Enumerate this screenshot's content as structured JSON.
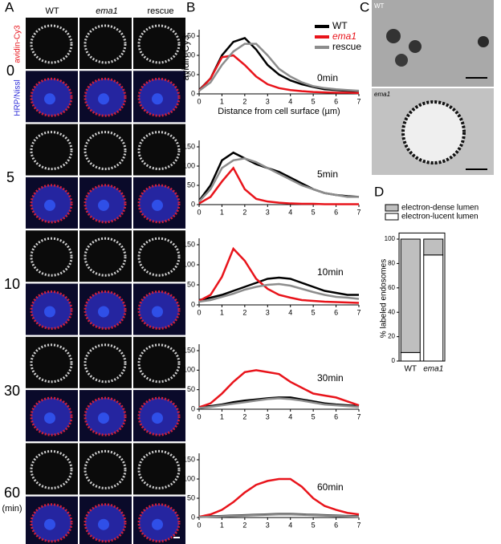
{
  "panel_labels": [
    "A",
    "B",
    "C",
    "D"
  ],
  "panel_a": {
    "columns": [
      "WT",
      "ema1",
      "rescue"
    ],
    "stains": [
      "avidin-Cy3",
      "HRP/Nissl"
    ],
    "times": [
      "0",
      "5",
      "10",
      "30",
      "60"
    ],
    "time_unit": "(min)"
  },
  "panel_c": {
    "labels": [
      "WT",
      "ema1"
    ]
  },
  "chart_data": [
    {
      "type": "line",
      "annotation": "0min",
      "xlabel": "Distance from cell surface (µm)",
      "ylabel": "avidin-Cy3",
      "legend": "upper right",
      "x": [
        0,
        0.5,
        1,
        1.5,
        2,
        2.5,
        3,
        3.5,
        4,
        4.5,
        5,
        5.5,
        6,
        6.5,
        7
      ],
      "xlim": [
        0,
        7
      ],
      "xticks": [
        0,
        1,
        2,
        3,
        4,
        5,
        6,
        7
      ],
      "ylim": [
        0,
        150
      ],
      "yticks": [
        0,
        50,
        100,
        150
      ],
      "series": [
        {
          "name": "WT",
          "color": "#000000",
          "values": [
            10,
            40,
            100,
            135,
            145,
            115,
            75,
            50,
            35,
            25,
            18,
            12,
            10,
            8,
            7
          ]
        },
        {
          "name": "ema1",
          "color": "#e8141b",
          "values": [
            8,
            40,
            95,
            100,
            75,
            45,
            25,
            15,
            10,
            7,
            5,
            4,
            3,
            3,
            2
          ]
        },
        {
          "name": "rescue",
          "color": "#8c8c8c",
          "values": [
            8,
            30,
            75,
            110,
            130,
            130,
            100,
            65,
            45,
            30,
            20,
            15,
            12,
            10,
            8
          ]
        }
      ]
    },
    {
      "type": "line",
      "annotation": "5min",
      "x": [
        0,
        0.5,
        1,
        1.5,
        2,
        2.5,
        3,
        3.5,
        4,
        4.5,
        5,
        5.5,
        6,
        6.5,
        7
      ],
      "xlim": [
        0,
        7
      ],
      "xticks": [
        0,
        1,
        2,
        3,
        4,
        5,
        6,
        7
      ],
      "ylim": [
        0,
        150
      ],
      "yticks": [
        0,
        50,
        100,
        150
      ],
      "series": [
        {
          "color": "#000000",
          "values": [
            10,
            50,
            115,
            135,
            120,
            105,
            95,
            85,
            70,
            55,
            40,
            30,
            25,
            22,
            20
          ]
        },
        {
          "color": "#e8141b",
          "values": [
            3,
            20,
            60,
            95,
            40,
            15,
            8,
            5,
            3,
            2,
            2,
            1,
            1,
            1,
            1
          ]
        },
        {
          "color": "#8c8c8c",
          "values": [
            8,
            40,
            95,
            115,
            120,
            110,
            95,
            80,
            65,
            50,
            40,
            30,
            25,
            20,
            20
          ]
        }
      ]
    },
    {
      "type": "line",
      "annotation": "10min",
      "x": [
        0,
        0.5,
        1,
        1.5,
        2,
        2.5,
        3,
        3.5,
        4,
        4.5,
        5,
        5.5,
        6,
        6.5,
        7
      ],
      "xlim": [
        0,
        7
      ],
      "xticks": [
        0,
        1,
        2,
        3,
        4,
        5,
        6,
        7
      ],
      "ylim": [
        0,
        150
      ],
      "yticks": [
        0,
        50,
        100,
        150
      ],
      "series": [
        {
          "color": "#000000",
          "values": [
            12,
            18,
            25,
            35,
            45,
            55,
            65,
            68,
            65,
            55,
            45,
            35,
            30,
            25,
            25
          ]
        },
        {
          "color": "#e8141b",
          "values": [
            10,
            25,
            70,
            140,
            110,
            65,
            40,
            25,
            18,
            12,
            10,
            8,
            7,
            6,
            5
          ]
        },
        {
          "color": "#8c8c8c",
          "values": [
            8,
            12,
            20,
            28,
            38,
            45,
            50,
            52,
            48,
            40,
            32,
            25,
            20,
            18,
            15
          ]
        }
      ]
    },
    {
      "type": "line",
      "annotation": "30min",
      "x": [
        0,
        0.5,
        1,
        1.5,
        2,
        2.5,
        3,
        3.5,
        4,
        4.5,
        5,
        5.5,
        6,
        6.5,
        7
      ],
      "xlim": [
        0,
        7
      ],
      "xticks": [
        0,
        1,
        2,
        3,
        4,
        5,
        6,
        7
      ],
      "ylim": [
        0,
        150
      ],
      "yticks": [
        0,
        50,
        100,
        150
      ],
      "series": [
        {
          "color": "#000000",
          "values": [
            5,
            8,
            12,
            18,
            22,
            25,
            28,
            30,
            30,
            25,
            20,
            15,
            12,
            10,
            8
          ]
        },
        {
          "color": "#e8141b",
          "values": [
            5,
            15,
            40,
            70,
            95,
            100,
            95,
            90,
            70,
            55,
            40,
            35,
            30,
            20,
            10
          ]
        },
        {
          "color": "#8c8c8c",
          "values": [
            3,
            6,
            10,
            14,
            18,
            22,
            26,
            28,
            26,
            22,
            17,
            12,
            10,
            8,
            6
          ]
        }
      ]
    },
    {
      "type": "line",
      "annotation": "60min",
      "x": [
        0,
        0.5,
        1,
        1.5,
        2,
        2.5,
        3,
        3.5,
        4,
        4.5,
        5,
        5.5,
        6,
        6.5,
        7
      ],
      "xlim": [
        0,
        7
      ],
      "xticks": [
        0,
        1,
        2,
        3,
        4,
        5,
        6,
        7
      ],
      "ylim": [
        0,
        150
      ],
      "yticks": [
        0,
        50,
        100,
        150
      ],
      "series": [
        {
          "color": "#000000",
          "values": [
            2,
            3,
            4,
            5,
            6,
            7,
            8,
            9,
            9,
            8,
            7,
            6,
            5,
            4,
            3
          ]
        },
        {
          "color": "#e8141b",
          "values": [
            2,
            8,
            20,
            40,
            65,
            85,
            95,
            100,
            100,
            80,
            50,
            30,
            20,
            12,
            8
          ]
        },
        {
          "color": "#8c8c8c",
          "values": [
            1,
            2,
            3,
            4,
            5,
            6,
            7,
            8,
            8,
            7,
            6,
            5,
            4,
            3,
            2
          ]
        }
      ]
    },
    {
      "type": "stacked_bar",
      "ylabel": "% labeled endosomes",
      "legend": "upper right",
      "categories": [
        "WT",
        "ema1"
      ],
      "ylim": [
        0,
        105
      ],
      "yticks": [
        0,
        20,
        40,
        60,
        80,
        100
      ],
      "series": [
        {
          "name": "electron-lucent lumen",
          "color": "#ffffff",
          "values": [
            7,
            87
          ]
        },
        {
          "name": "electron-dense lumen",
          "color": "#bfbfbf",
          "values": [
            93,
            13
          ]
        }
      ]
    }
  ]
}
